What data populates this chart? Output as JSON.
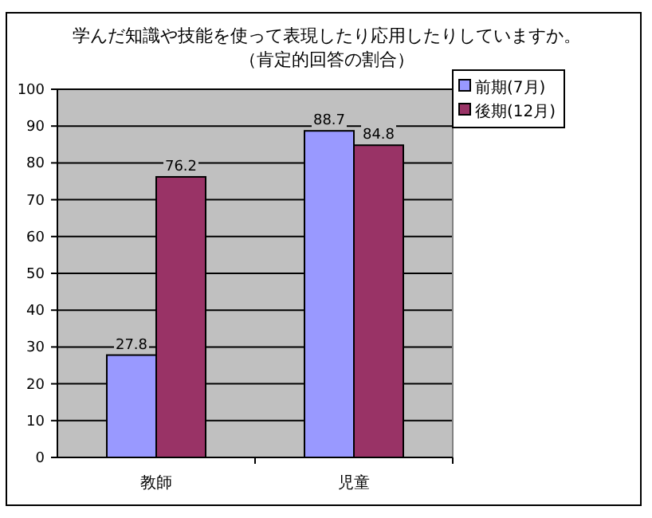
{
  "chart_data": {
    "type": "bar",
    "title": "学んだ知識や技能を使って表現したり応用したりしていますか。",
    "subtitle": "（肯定的回答の割合）",
    "categories": [
      "教師",
      "児童"
    ],
    "series": [
      {
        "name": "前期(7月)",
        "color": "#9999ff",
        "values": [
          27.8,
          88.7
        ]
      },
      {
        "name": "後期(12月)",
        "color": "#993366",
        "values": [
          76.2,
          84.8
        ]
      }
    ],
    "ylim": [
      0,
      100
    ],
    "yticks": [
      0,
      10,
      20,
      30,
      40,
      50,
      60,
      70,
      80,
      90,
      100
    ],
    "grid": "y",
    "legend": "top right",
    "data_labels": true
  }
}
